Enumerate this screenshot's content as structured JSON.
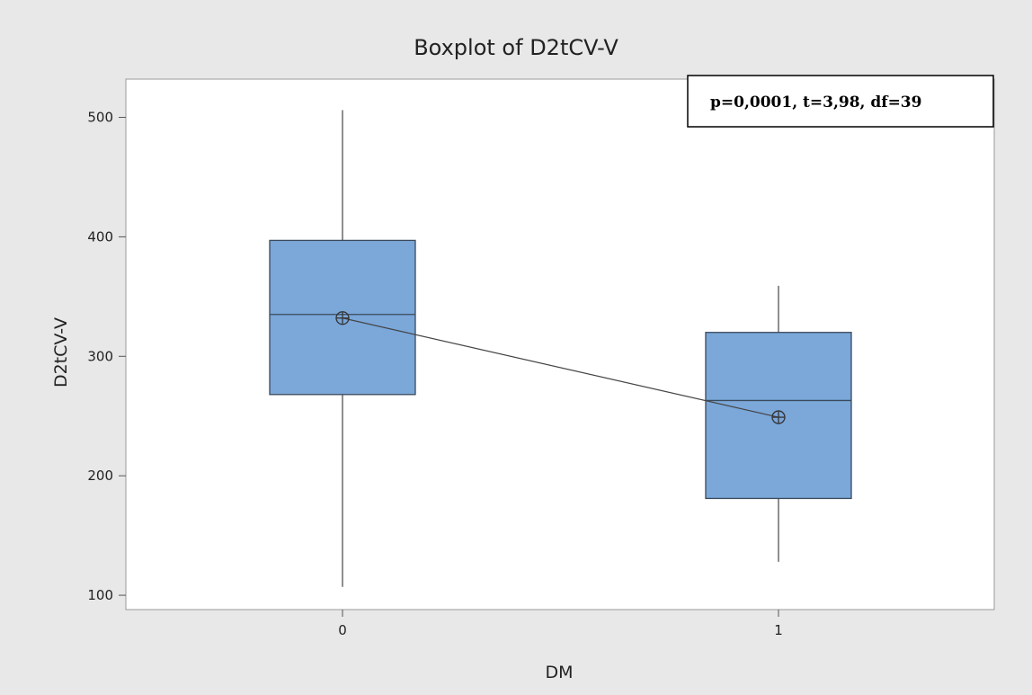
{
  "chart_data": {
    "type": "boxplot",
    "title": "Boxplot of D2tCV-V",
    "xlabel": "DM",
    "ylabel": "D2tCV-V",
    "categories": [
      "0",
      "1"
    ],
    "boxes": [
      {
        "category": "0",
        "min": 107,
        "q1": 268,
        "median": 335,
        "q3": 397,
        "max": 506,
        "mean": 332
      },
      {
        "category": "1",
        "min": 128,
        "q1": 181,
        "median": 263,
        "q3": 320,
        "max": 359,
        "mean": 249
      }
    ],
    "y_ticks": [
      100,
      200,
      300,
      400,
      500
    ],
    "ylim": [
      88,
      532
    ],
    "annotation": "p=0,0001, t=3,98, df=39",
    "legend": "none",
    "grid": false,
    "colors": {
      "background": "#e8e8e8",
      "plot": "#ffffff",
      "box_fill": "#7ba7d9",
      "box_stroke": "#3a4a5c",
      "line": "#444444"
    }
  }
}
